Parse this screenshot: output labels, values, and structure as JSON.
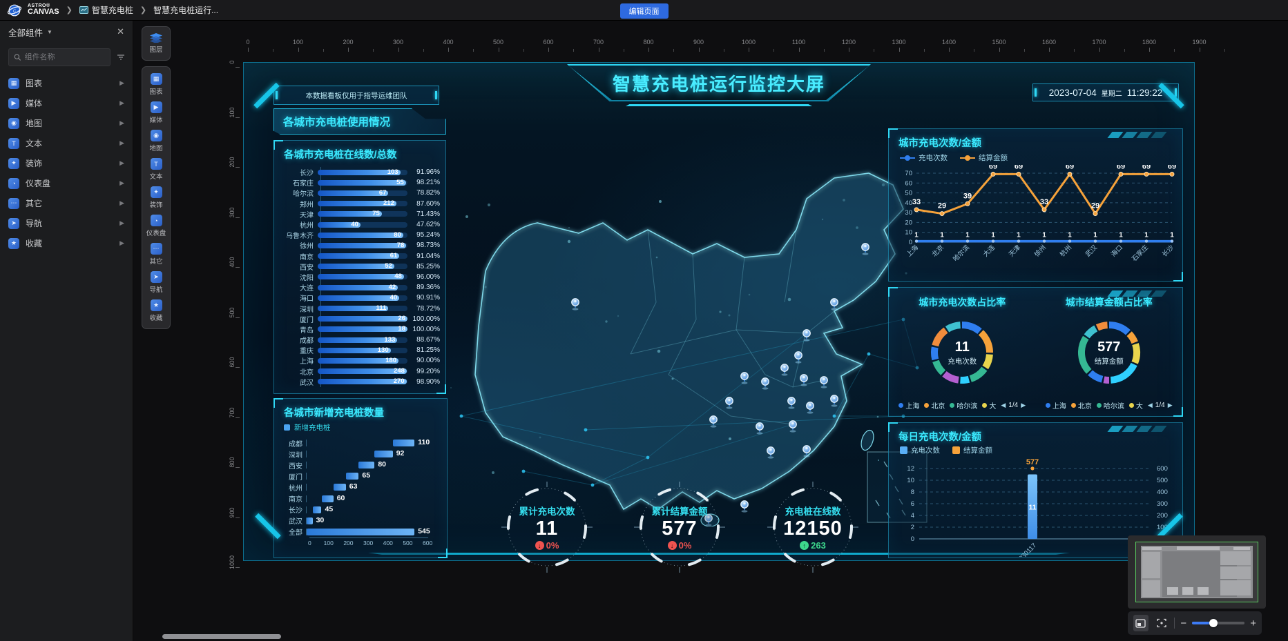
{
  "topbar": {
    "brand_top": "ASTRO®",
    "brand_bottom": "CANVAS",
    "breadcrumb": [
      {
        "label": "智慧充电桩",
        "icon": "screen-icon"
      },
      {
        "label": "智慧充电桩运行...",
        "icon": ""
      }
    ],
    "edit_button": "编辑页面"
  },
  "sidebar": {
    "title": "全部组件",
    "search_placeholder": "组件名称",
    "items": [
      {
        "label": "图表",
        "icon": "chart-icon"
      },
      {
        "label": "媒体",
        "icon": "media-icon"
      },
      {
        "label": "地图",
        "icon": "map-icon"
      },
      {
        "label": "文本",
        "icon": "text-icon"
      },
      {
        "label": "装饰",
        "icon": "decoration-icon"
      },
      {
        "label": "仪表盘",
        "icon": "gauge-icon"
      },
      {
        "label": "其它",
        "icon": "other-icon"
      },
      {
        "label": "导航",
        "icon": "nav-icon"
      },
      {
        "label": "收藏",
        "icon": "favorite-icon"
      }
    ]
  },
  "layer_toolbar": {
    "layer": {
      "label": "图层",
      "icon": "layers-icon"
    },
    "items": [
      {
        "label": "图表",
        "icon": "chart-icon"
      },
      {
        "label": "媒体",
        "icon": "media-icon"
      },
      {
        "label": "地图",
        "icon": "map-icon"
      },
      {
        "label": "文本",
        "icon": "text-icon"
      },
      {
        "label": "装饰",
        "icon": "decoration-icon"
      },
      {
        "label": "仪表盘",
        "icon": "gauge-icon"
      },
      {
        "label": "其它",
        "icon": "other-icon"
      },
      {
        "label": "导航",
        "icon": "nav-icon"
      },
      {
        "label": "收藏",
        "icon": "favorite-icon"
      }
    ]
  },
  "ruler": {
    "h_ticks": [
      "0",
      "100",
      "200",
      "300",
      "400",
      "500",
      "600",
      "700",
      "800",
      "900",
      "1000",
      "1100",
      "1200",
      "1300",
      "1400",
      "1500",
      "1600",
      "1700",
      "1800",
      "1900"
    ],
    "v_ticks": [
      "0",
      "100",
      "200",
      "300",
      "400",
      "500",
      "600",
      "700",
      "800",
      "900",
      "1000"
    ]
  },
  "screen": {
    "notice": "本数据看板仅用于指导运维团队",
    "title": "智慧充电桩运行监控大屏",
    "date": "2023-07-04",
    "weekday": "星期二",
    "time": "11:29:22",
    "section_title": "各城市充电桩使用情况",
    "gauges": [
      {
        "label": "累计充电次数",
        "value": "11",
        "delta": "0%",
        "trend": "down"
      },
      {
        "label": "累计结算金额",
        "value": "577",
        "delta": "0%",
        "trend": "down"
      },
      {
        "label": "充电桩在线数",
        "value": "12150",
        "delta": "263",
        "trend": "up"
      }
    ]
  },
  "chart_data": [
    {
      "id": "city_online_total",
      "type": "bar",
      "orientation": "horizontal",
      "title": "各城市充电桩在线数/总数",
      "categories": [
        "长沙",
        "石家庄",
        "哈尔滨",
        "郑州",
        "天津",
        "杭州",
        "乌鲁木齐",
        "徐州",
        "南京",
        "西安",
        "沈阳",
        "大连",
        "海口",
        "深圳",
        "厦门",
        "青岛",
        "成都",
        "重庆",
        "上海",
        "北京",
        "武汉"
      ],
      "values": [
        103,
        55,
        67,
        212,
        75,
        40,
        80,
        78,
        61,
        52,
        48,
        42,
        40,
        111,
        26,
        18,
        133,
        130,
        180,
        248,
        270
      ],
      "percents": [
        "91.96%",
        "98.21%",
        "78.82%",
        "87.60%",
        "71.43%",
        "47.62%",
        "95.24%",
        "98.73%",
        "91.04%",
        "85.25%",
        "96.00%",
        "89.36%",
        "90.91%",
        "78.72%",
        "100.00%",
        "100.00%",
        "88.67%",
        "81.25%",
        "90.00%",
        "99.20%",
        "98.90%"
      ]
    },
    {
      "id": "city_new_piles",
      "type": "bar",
      "orientation": "horizontal",
      "subtype": "waterfall",
      "title": "各城市新增充电桩数量",
      "legend": [
        {
          "label": "新增充电桩",
          "color": "#4aa3f0"
        }
      ],
      "categories": [
        "成都",
        "深圳",
        "西安",
        "厦门",
        "杭州",
        "南京",
        "长沙",
        "武汉",
        "全部"
      ],
      "values": [
        110,
        92,
        80,
        65,
        63,
        60,
        45,
        30,
        545
      ],
      "starts": [
        435,
        343,
        263,
        198,
        135,
        75,
        30,
        0,
        0
      ],
      "x_ticks": [
        "0",
        "100",
        "200",
        "300",
        "400",
        "500",
        "600"
      ],
      "xlim": [
        0,
        600
      ]
    },
    {
      "id": "city_line",
      "type": "line",
      "title": "城市充电次数/金额",
      "categories": [
        "上海",
        "北京",
        "哈尔滨",
        "大连",
        "天津",
        "徐州",
        "杭州",
        "武汉",
        "海口",
        "石家庄",
        "长沙"
      ],
      "series": [
        {
          "name": "充电次数",
          "color": "#2f7ef0",
          "values": [
            1,
            1,
            1,
            1,
            1,
            1,
            1,
            1,
            1,
            1,
            1
          ]
        },
        {
          "name": "结算金额",
          "color": "#f6a23a",
          "values": [
            33,
            29,
            39,
            69,
            69,
            33,
            69,
            29,
            69,
            69,
            69
          ]
        }
      ],
      "y_ticks": [
        0,
        10,
        20,
        30,
        40,
        50,
        60,
        70
      ],
      "ylim": [
        0,
        70
      ],
      "grid": "dashed",
      "legend_position": "top"
    },
    {
      "id": "donut_charge_count",
      "type": "pie",
      "title": "城市充电次数占比率",
      "center_value": "11",
      "center_label": "充电次数",
      "segments": [
        {
          "value": 12,
          "color": "#2f7ef0"
        },
        {
          "value": 14,
          "color": "#f6a23a"
        },
        {
          "value": 9,
          "color": "#e8d44d"
        },
        {
          "value": 11,
          "color": "#35b893"
        },
        {
          "value": 6,
          "color": "#2fd0ff"
        },
        {
          "value": 10,
          "color": "#b45fd0"
        },
        {
          "value": 9,
          "color": "#35b893"
        },
        {
          "value": 8,
          "color": "#2f7ef0"
        },
        {
          "value": 12,
          "color": "#f08c3c"
        },
        {
          "value": 9,
          "color": "#3fc1d0"
        }
      ],
      "legend": [
        {
          "label": "上海",
          "color": "#2f7ef0"
        },
        {
          "label": "北京",
          "color": "#f6a23a"
        },
        {
          "label": "哈尔滨",
          "color": "#35b893"
        },
        {
          "label": "大",
          "color": "#e8d44d"
        }
      ],
      "pagination": "1/4"
    },
    {
      "id": "donut_settle_amount",
      "type": "pie",
      "title": "城市结算金额占比率",
      "center_value": "577",
      "center_label": "结算金额",
      "segments": [
        {
          "value": 13,
          "color": "#2f7ef0"
        },
        {
          "value": 7,
          "color": "#f6a23a"
        },
        {
          "value": 12,
          "color": "#e8d44d"
        },
        {
          "value": 18,
          "color": "#2fd0ff"
        },
        {
          "value": 4,
          "color": "#b45fd0"
        },
        {
          "value": 9,
          "color": "#2f7ef0"
        },
        {
          "value": 22,
          "color": "#35b893"
        },
        {
          "value": 8,
          "color": "#3fc1d0"
        },
        {
          "value": 7,
          "color": "#f08c3c"
        }
      ],
      "legend": [
        {
          "label": "上海",
          "color": "#2f7ef0"
        },
        {
          "label": "北京",
          "color": "#f6a23a"
        },
        {
          "label": "哈尔滨",
          "color": "#35b893"
        },
        {
          "label": "大",
          "color": "#e8d44d"
        }
      ],
      "pagination": "1/4"
    },
    {
      "id": "daily",
      "type": "bar",
      "title": "每日充电次数/金额",
      "legend": [
        {
          "label": "充电次数",
          "color": "#5aaef5"
        },
        {
          "label": "结算金额",
          "color": "#f6a23a"
        }
      ],
      "categories": [
        "20230117"
      ],
      "series": [
        {
          "name": "充电次数",
          "axis": "left",
          "values": [
            11
          ]
        },
        {
          "name": "结算金额",
          "axis": "right",
          "values": [
            577
          ]
        }
      ],
      "left_ticks": [
        12,
        10,
        8,
        6,
        4,
        2,
        0
      ],
      "right_ticks": [
        600,
        500,
        400,
        300,
        200,
        100,
        0
      ],
      "grid": "dashed"
    }
  ],
  "minimap": {
    "slider_value": 40
  },
  "colors": {
    "accent_cyan": "#3beaff",
    "panel_border": "#20aad2",
    "bar_blue": "#3f8ee8",
    "line_orange": "#f6a23a",
    "line_blue": "#2f7ef0",
    "edit_button_blue": "#2e6ae0",
    "down_red": "#ef5350",
    "up_green": "#3dd68c"
  }
}
